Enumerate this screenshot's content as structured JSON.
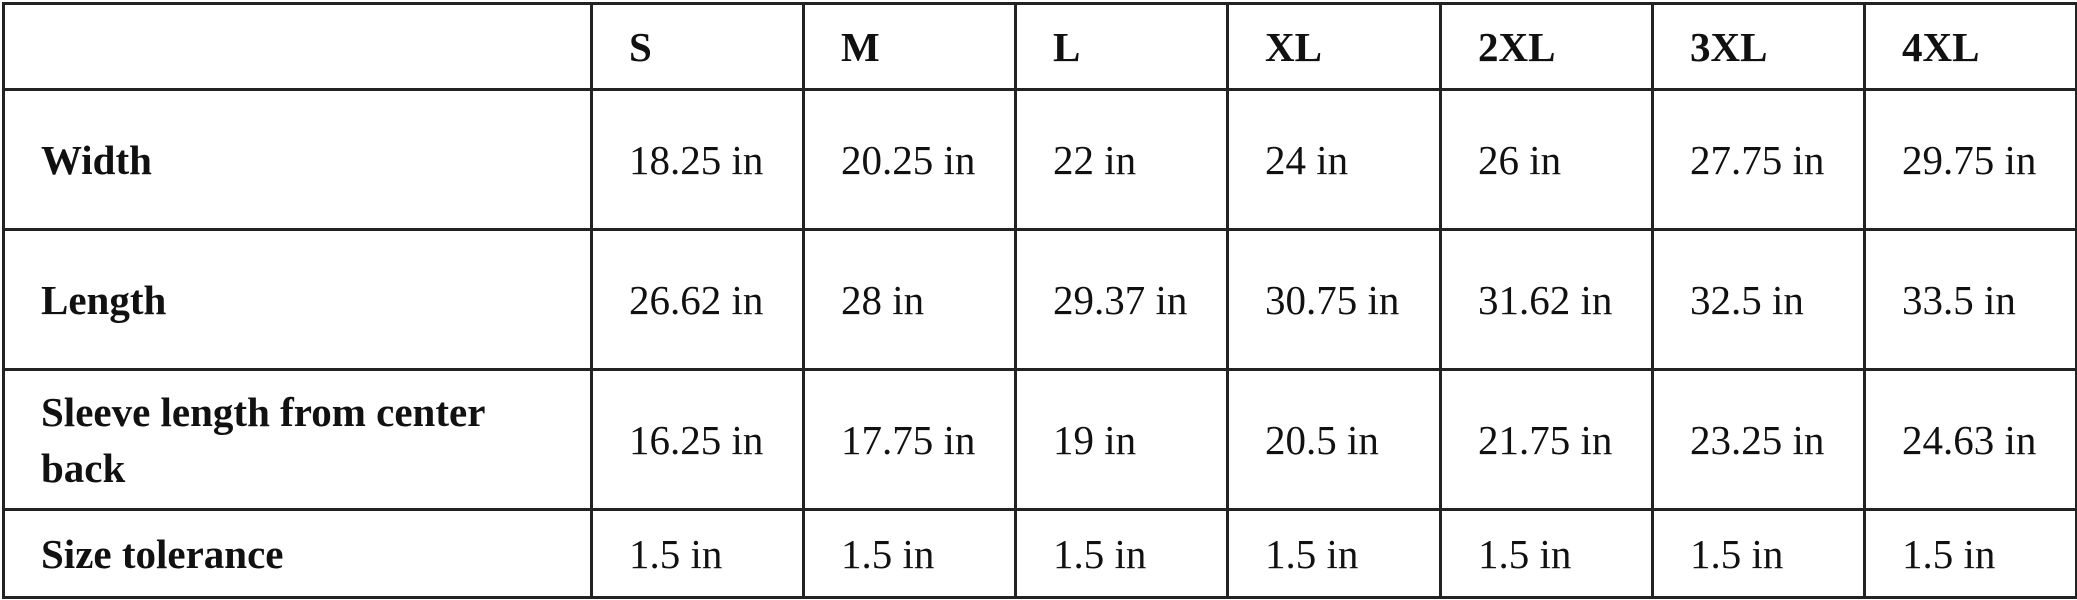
{
  "columns": [
    "",
    "S",
    "M",
    "L",
    "XL",
    "2XL",
    "3XL",
    "4XL"
  ],
  "rows": [
    {
      "label": "Width",
      "values": [
        "18.25 in",
        "20.25 in",
        "22 in",
        "24 in",
        "26 in",
        "27.75 in",
        "29.75 in"
      ]
    },
    {
      "label": "Length",
      "values": [
        "26.62 in",
        "28 in",
        "29.37 in",
        "30.75 in",
        "31.62 in",
        "32.5 in",
        "33.5 in"
      ]
    },
    {
      "label": "Sleeve length from center back",
      "values": [
        "16.25 in",
        "17.75 in",
        "19 in",
        "20.5 in",
        "21.75 in",
        "23.25 in",
        "24.63 in"
      ]
    },
    {
      "label": "Size tolerance",
      "values": [
        "1.5 in",
        "1.5 in",
        "1.5 in",
        "1.5 in",
        "1.5 in",
        "1.5 in",
        "1.5 in"
      ]
    }
  ]
}
